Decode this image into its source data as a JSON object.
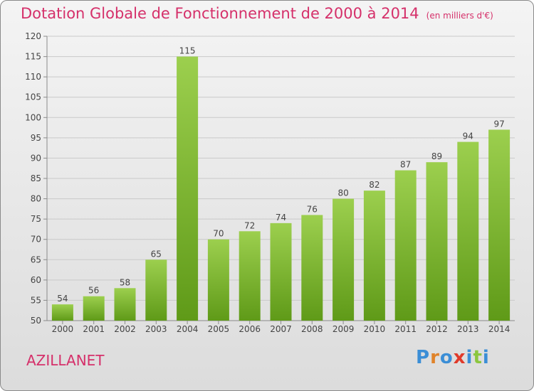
{
  "header": {
    "title": "Dotation Globale de Fonctionnement de 2000 à 2014",
    "subtitle": "(en milliers d'€)"
  },
  "footer": {
    "commune": "AZILLANET",
    "logo_text": "Proxiti"
  },
  "colors": {
    "title": "#d5306a",
    "bar_top": "#9ccf4e",
    "bar_bottom": "#5f9a18",
    "logo": [
      "#3b8ed6",
      "#e0832a",
      "#3b8ed6",
      "#e03a2a",
      "#3b8ed6",
      "#8cc63f",
      "#3b8ed6"
    ]
  },
  "chart_data": {
    "type": "bar",
    "title": "Dotation Globale de Fonctionnement de 2000 à 2014",
    "subtitle": "(en milliers d'€)",
    "categories": [
      "2000",
      "2001",
      "2002",
      "2003",
      "2004",
      "2005",
      "2006",
      "2007",
      "2008",
      "2009",
      "2010",
      "2011",
      "2012",
      "2013",
      "2014"
    ],
    "values": [
      54,
      56,
      58,
      65,
      115,
      70,
      72,
      74,
      76,
      80,
      82,
      87,
      89,
      94,
      97
    ],
    "ylim": [
      50,
      120
    ],
    "yticks": [
      50,
      55,
      60,
      65,
      70,
      75,
      80,
      85,
      90,
      95,
      100,
      105,
      110,
      115,
      120
    ],
    "xlabel": "",
    "ylabel": "",
    "grid": true,
    "data_labels": true
  }
}
